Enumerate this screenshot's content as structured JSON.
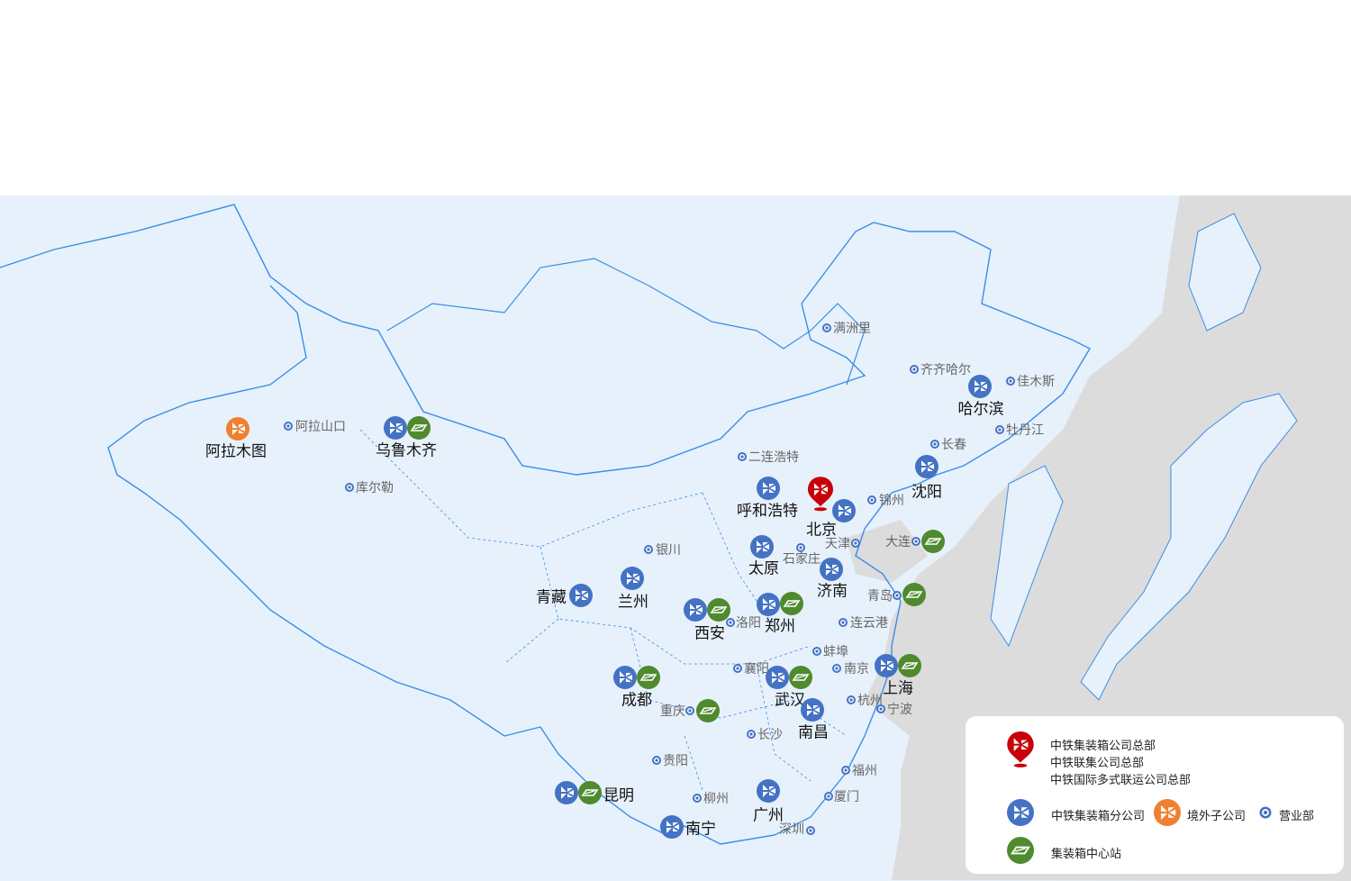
{
  "colors": {
    "branch": "#4472c4",
    "center": "#4f8a2f",
    "overseas": "#f08030",
    "hq": "#c8000a",
    "office": "#4472c4",
    "land": "#e7f1fb",
    "sea": "#dcdcdc",
    "border": "#3a8ee6"
  },
  "markers": {
    "alamutu": "阿拉木图",
    "alashankou": "阿拉山口",
    "wulumuqi": "乌鲁木齐",
    "kuerle": "库尔勒",
    "manzhouli": "满洲里",
    "qiqihaer": "齐齐哈尔",
    "haerbin": "哈尔滨",
    "jiamusi": "佳木斯",
    "mudanjiang": "牡丹江",
    "changchun": "长春",
    "shenyang": "沈阳",
    "erlianhaote": "二连浩特",
    "huhehaote": "呼和浩特",
    "beijing": "北京",
    "jinzhou": "锦州",
    "tianjin": "天津",
    "dalian": "大连",
    "yinchuan": "银川",
    "taiyuan": "太原",
    "shijiazhuang": "石家庄",
    "jinan": "济南",
    "qingzang": "青藏",
    "lanzhou": "兰州",
    "qingdao": "青岛",
    "xian": "西安",
    "luoyang": "洛阳",
    "zhengzhou": "郑州",
    "lianyungang": "连云港",
    "bengbu": "蚌埠",
    "xiangyang": "襄阳",
    "nanjing": "南京",
    "shanghai": "上海",
    "chengdu": "成都",
    "wuhan": "武汉",
    "hangzhou": "杭州",
    "ningbo": "宁波",
    "chongqing": "重庆",
    "nanchang": "南昌",
    "changsha": "长沙",
    "guiyang": "贵阳",
    "fuzhou": "福州",
    "kunming": "昆明",
    "liuzhou": "柳州",
    "guangzhou": "广州",
    "xiamen": "厦门",
    "nanning": "南宁",
    "shenzhen": "深圳"
  },
  "legend": {
    "hq_lines": [
      "中铁集装箱公司总部",
      "中铁联集公司总部",
      "中铁国际多式联运公司总部"
    ],
    "branch": "中铁集装箱分公司",
    "overseas": "境外子公司",
    "office": "营业部",
    "center": "集装箱中心站"
  }
}
